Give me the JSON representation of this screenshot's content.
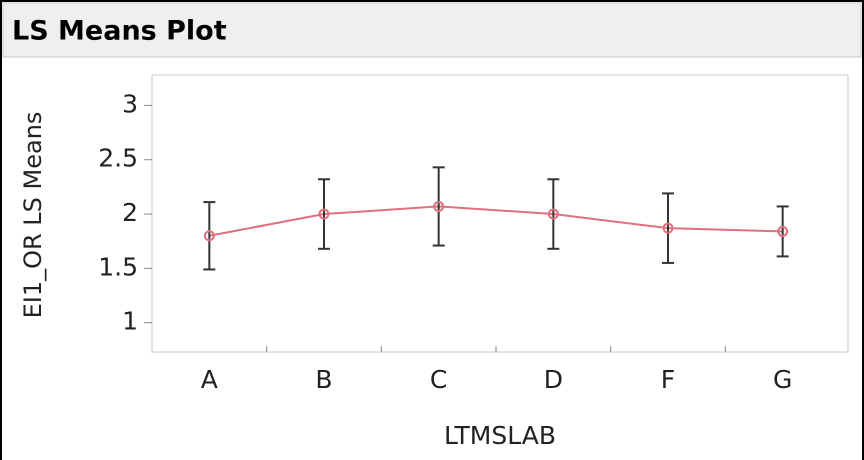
{
  "chart_data": {
    "type": "line",
    "title": "LS Means Plot",
    "x_label": "LTMSLAB",
    "y_label": "EI1_OR LS Means",
    "categories": [
      "A",
      "B",
      "C",
      "D",
      "F",
      "G"
    ],
    "series": [
      {
        "color": "#e0707c",
        "values": [
          1.8,
          2.0,
          2.07,
          2.0,
          1.87,
          1.84
        ],
        "errors": [
          0.31,
          0.32,
          0.36,
          0.32,
          0.32,
          0.23
        ]
      }
    ],
    "ylim": [
      0.73,
      3.28
    ],
    "yticks": [
      1,
      1.5,
      2,
      2.5,
      3
    ]
  }
}
